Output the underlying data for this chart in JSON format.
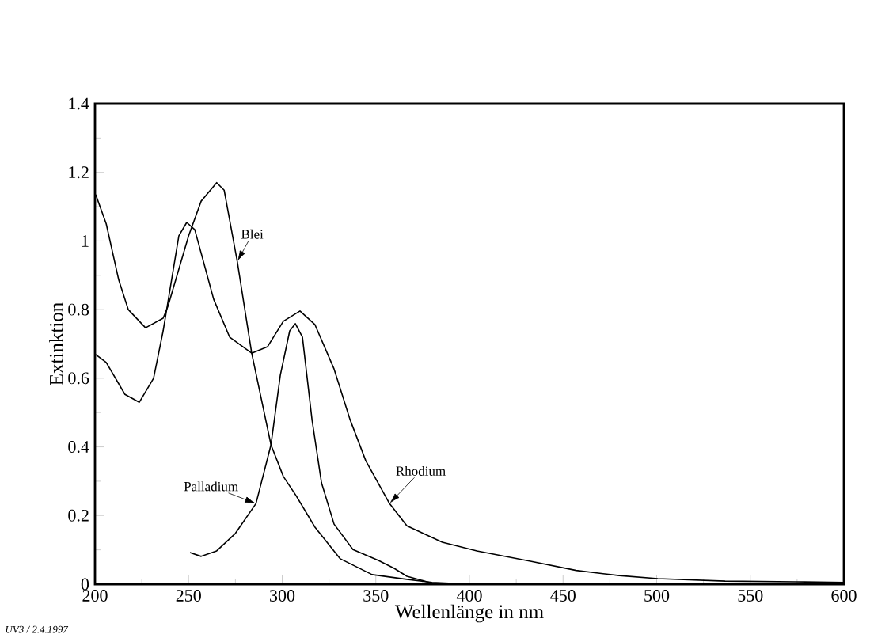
{
  "chart_data": {
    "type": "line",
    "xlabel": "Wellenlänge in nm",
    "ylabel": "Extinktion",
    "annotations": [
      "UV3 / 2.4.1997"
    ],
    "xlim": [
      200,
      600
    ],
    "ylim": [
      0,
      1.4
    ],
    "xticks": [
      200,
      250,
      300,
      350,
      400,
      450,
      500,
      550,
      600
    ],
    "yticks": [
      0,
      0.2,
      0.4,
      0.6,
      0.8,
      1,
      1.2,
      1.4
    ],
    "legend": false,
    "grid": false,
    "series": [
      {
        "name": "Blei",
        "color": "#000000",
        "x": [
          200.4,
          206,
          212.7,
          217.8,
          227,
          236.4,
          239,
          250,
          256.7,
          265,
          269,
          276,
          283.7,
          294,
          300.6,
          307.4,
          317.5,
          331,
          348,
          366.6,
          380,
          400,
          600
        ],
        "values": [
          1.135,
          1.05,
          0.886,
          0.8,
          0.747,
          0.775,
          0.81,
          1.015,
          1.116,
          1.17,
          1.148,
          0.94,
          0.673,
          0.406,
          0.314,
          0.258,
          0.166,
          0.074,
          0.028,
          0.014,
          0.005,
          0,
          0
        ]
      },
      {
        "name": "Rhodium",
        "color": "#000000",
        "x": [
          200.4,
          206,
          216,
          223.7,
          231.3,
          236.4,
          244.8,
          249,
          253.3,
          263.4,
          271.9,
          283.7,
          292.2,
          300.6,
          309.5,
          317.5,
          327.7,
          336.2,
          344.6,
          357.3,
          366.6,
          385.5,
          404,
          432.6,
          457,
          480,
          500.6,
          536.6,
          574,
          600
        ],
        "values": [
          0.669,
          0.646,
          0.553,
          0.53,
          0.6,
          0.738,
          1.015,
          1.054,
          1.033,
          0.83,
          0.72,
          0.673,
          0.692,
          0.766,
          0.796,
          0.756,
          0.627,
          0.48,
          0.36,
          0.235,
          0.17,
          0.122,
          0.097,
          0.067,
          0.04,
          0.025,
          0.016,
          0.009,
          0.007,
          0.005
        ]
      },
      {
        "name": "Palladium",
        "color": "#000000",
        "x": [
          250.7,
          256.7,
          265,
          275,
          286,
          294,
          299,
          304,
          307,
          310.8,
          315.9,
          321,
          327.7,
          337.8,
          351.4,
          359.8,
          366.6,
          380,
          400,
          600
        ],
        "values": [
          0.092,
          0.081,
          0.097,
          0.148,
          0.235,
          0.406,
          0.609,
          0.738,
          0.759,
          0.72,
          0.48,
          0.295,
          0.175,
          0.101,
          0.069,
          0.046,
          0.023,
          0.003,
          0,
          0
        ]
      }
    ]
  }
}
